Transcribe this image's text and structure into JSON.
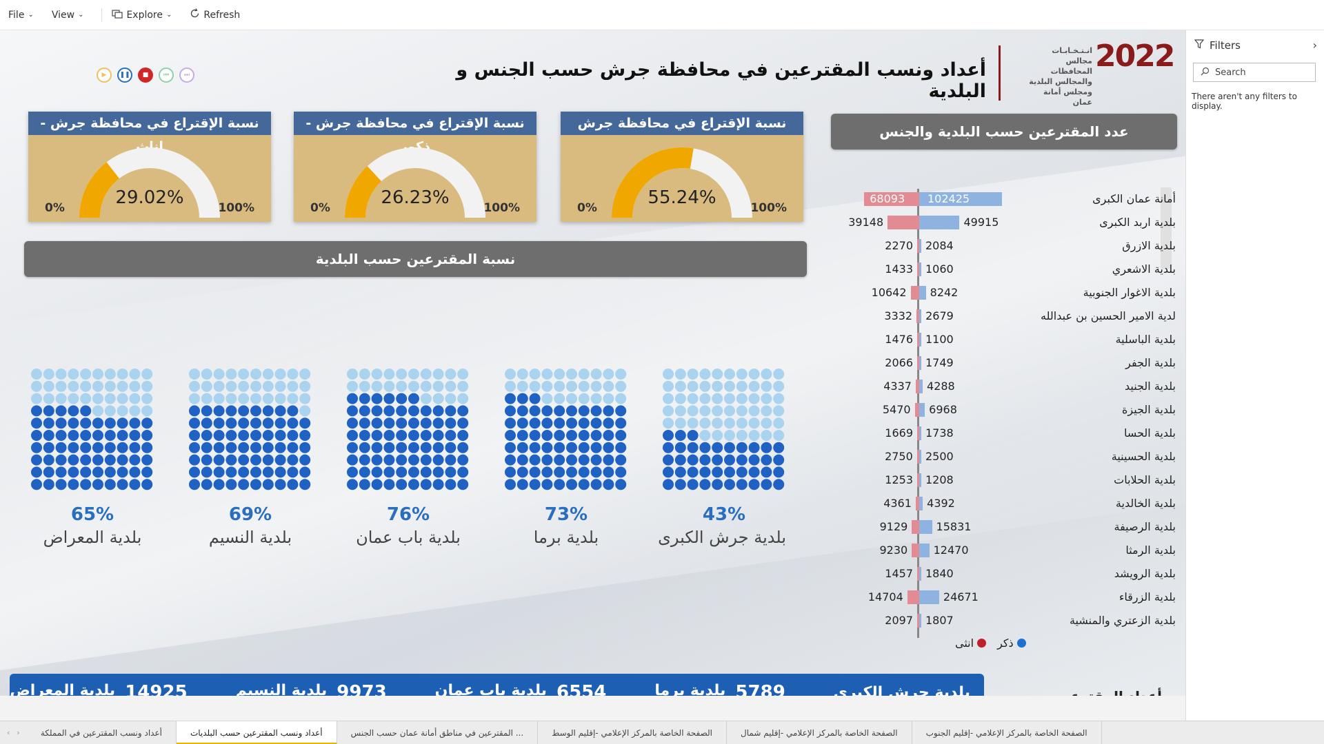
{
  "menubar": {
    "file": "File",
    "view": "View",
    "explore": "Explore",
    "refresh": "Refresh"
  },
  "header": {
    "title": "أعداد ونسب المقترعين في  محافظة جرش  حسب الجنس و البلدية",
    "logo_text": "انـتـخـابـات مجالس المحافظات والمجالس البلدية ومجلس أمانة عمان",
    "logo_year": "2022"
  },
  "gauges": [
    {
      "title": "نسبة الإقتراع في محافظة جرش - إناث",
      "value_label": "29.02%",
      "value": 29.02,
      "min": "0%",
      "max": "100%"
    },
    {
      "title": "نسبة الإقتراع في محافظة جرش - ذكور",
      "value_label": "26.23%",
      "value": 26.23,
      "min": "0%",
      "max": "100%"
    },
    {
      "title": "نسبة الإقتراع في محافظة جرش",
      "value_label": "55.24%",
      "value": 55.24,
      "min": "0%",
      "max": "100%"
    }
  ],
  "sections": {
    "pct_title": "نسبة المقترعين حسب البلدية",
    "count_title": "عدد المقترعين حسب البلدية والجنس",
    "ticker_title": "أعداد المقترعين حسب البلدية"
  },
  "waffles": [
    {
      "pct_label": "65%",
      "value": 65,
      "name": "بلدية المعراض"
    },
    {
      "pct_label": "69%",
      "value": 69,
      "name": "بلدية النسيم"
    },
    {
      "pct_label": "76%",
      "value": 76,
      "name": "بلدية باب عمان"
    },
    {
      "pct_label": "73%",
      "value": 73,
      "name": "بلدية برما"
    },
    {
      "pct_label": "43%",
      "value": 43,
      "name": "بلدية جرش الكبرى"
    }
  ],
  "chart_data": {
    "type": "bar",
    "title": "عدد المقترعين حسب البلدية والجنس",
    "categories": [
      "أمانة عمان الكبرى",
      "بلدية اربد الكبرى",
      "بلدية الازرق",
      "بلدية الاشعري",
      "بلدية الاغوار الجنوبية",
      "لدية الامير الحسين بن عبدالله",
      "بلدية الباسلية",
      "بلدية الجفر",
      "بلدية الجنيد",
      "بلدية الجيزة",
      "بلدية الحسا",
      "بلدية الحسينية",
      "بلدية الحلابات",
      "بلدية الخالدية",
      "بلدية الرصيفة",
      "بلدية الرمثا",
      "بلدية الرويشد",
      "بلدية الزرقاء",
      "بلدية الزعتري والمنشية"
    ],
    "series": [
      {
        "name": "انثى",
        "color": "#e38b93",
        "values": [
          68093,
          39148,
          2270,
          1433,
          10642,
          3332,
          1476,
          2066,
          4337,
          5470,
          1669,
          2750,
          1253,
          4361,
          9129,
          9230,
          1457,
          14704,
          2097
        ]
      },
      {
        "name": "ذكر",
        "color": "#8eb3e0",
        "values": [
          102425,
          49915,
          2084,
          1060,
          8242,
          2679,
          1100,
          1749,
          4288,
          6968,
          1738,
          2500,
          1208,
          4392,
          15831,
          12470,
          1840,
          24671,
          1807
        ]
      }
    ],
    "legend": {
      "female": "انثى",
      "male": "ذكر",
      "female_color": "#c0202a",
      "male_color": "#1d6fd1"
    }
  },
  "ticker": [
    {
      "name": "بلدية جرش الكبرى",
      "value": ""
    },
    {
      "name": "بلدية برما",
      "value": "5789"
    },
    {
      "name": "بلدية باب عمان",
      "value": "6554"
    },
    {
      "name": "بلدية النسيم",
      "value": "9973"
    },
    {
      "name": "بلدية المعراض",
      "value": "14925"
    }
  ],
  "filters": {
    "title": "Filters",
    "search_placeholder": "Search",
    "empty": "There aren't any filters to display."
  },
  "tabs": [
    {
      "label": "أعداد ونسب المقترعين في المملكة",
      "active": false
    },
    {
      "label": "أعداد ونسب المقترعين حسب البلديات",
      "active": true
    },
    {
      "label": "... المقترعين في مناطق أمانة عمان حسب الجنس",
      "active": false
    },
    {
      "label": "الصفحة الخاصة بالمركز الإعلامي -إقليم الوسط",
      "active": false
    },
    {
      "label": "الصفحة الخاصة بالمركز الإعلامي -إقليم شمال",
      "active": false
    },
    {
      "label": "الصفحة الخاصة بالمركز الإعلامي -إقليم الجنوب",
      "active": false
    }
  ],
  "colors": {
    "gauge_fill": "#f0a800",
    "gauge_track": "#f2f2f2",
    "waffle_dark": "#1f62c4",
    "waffle_light": "#a9d3ef",
    "ticker_bg": "#1d5fb3"
  }
}
